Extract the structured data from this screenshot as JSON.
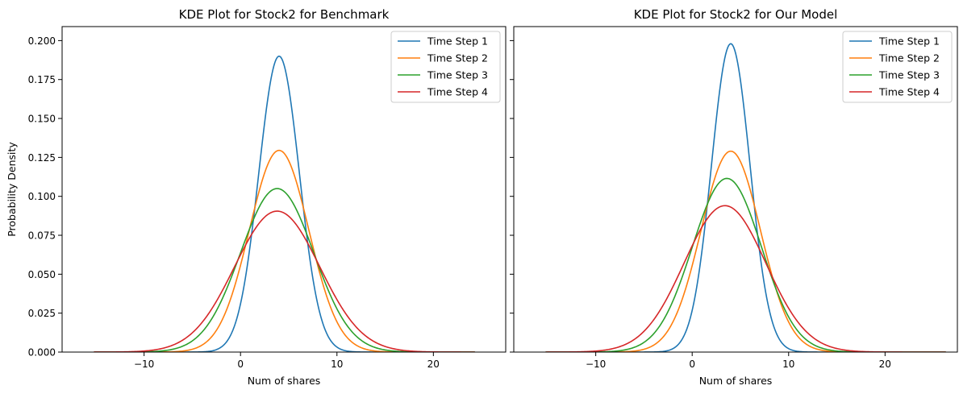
{
  "chart_data": [
    {
      "type": "line",
      "title": "KDE Plot for Stock2 for Benchmark",
      "xlabel": "Num of shares",
      "ylabel": "Probability Density",
      "xlim": [
        -18.5,
        27.5
      ],
      "ylim": [
        0,
        0.209
      ],
      "x_ticks": [
        -10,
        0,
        10,
        20
      ],
      "x_tick_labels": [
        "−10",
        "0",
        "10",
        "20"
      ],
      "y_ticks": [
        0,
        0.025,
        0.05,
        0.075,
        0.1,
        0.125,
        0.15,
        0.175,
        0.2
      ],
      "y_tick_labels": [
        "0.000",
        "0.025",
        "0.050",
        "0.075",
        "0.100",
        "0.125",
        "0.150",
        "0.175",
        "0.200"
      ],
      "show_y_tick_labels": true,
      "legend_position": "top-right",
      "x_range": [
        -15.2,
        24.3
      ],
      "series": [
        {
          "name": "Time Step 1",
          "color": "#1f77b4",
          "peak_x": 4.0,
          "peak_y": 0.19,
          "spread": 2.1
        },
        {
          "name": "Time Step 2",
          "color": "#ff7f0e",
          "peak_x": 4.0,
          "peak_y": 0.1295,
          "spread": 3.08
        },
        {
          "name": "Time Step 3",
          "color": "#2ca02c",
          "peak_x": 3.8,
          "peak_y": 0.105,
          "spread": 3.8
        },
        {
          "name": "Time Step 4",
          "color": "#d62728",
          "peak_x": 3.8,
          "peak_y": 0.0905,
          "spread": 4.41
        }
      ]
    },
    {
      "type": "line",
      "title": "KDE Plot for Stock2 for Our Model",
      "xlabel": "Num of shares",
      "ylabel": "",
      "xlim": [
        -18.5,
        27.5
      ],
      "ylim": [
        0,
        0.209
      ],
      "x_ticks": [
        -10,
        0,
        10,
        20
      ],
      "x_tick_labels": [
        "−10",
        "0",
        "10",
        "20"
      ],
      "y_ticks": [
        0,
        0.025,
        0.05,
        0.075,
        0.1,
        0.125,
        0.15,
        0.175,
        0.2
      ],
      "y_tick_labels": [
        "0.000",
        "0.025",
        "0.050",
        "0.075",
        "0.100",
        "0.125",
        "0.150",
        "0.175",
        "0.200"
      ],
      "show_y_tick_labels": false,
      "legend_position": "top-right",
      "x_range": [
        -15.2,
        26.3
      ],
      "series": [
        {
          "name": "Time Step 1",
          "color": "#1f77b4",
          "peak_x": 4.0,
          "peak_y": 0.198,
          "spread": 2.0
        },
        {
          "name": "Time Step 2",
          "color": "#ff7f0e",
          "peak_x": 4.0,
          "peak_y": 0.129,
          "spread": 3.08
        },
        {
          "name": "Time Step 3",
          "color": "#2ca02c",
          "peak_x": 3.6,
          "peak_y": 0.1115,
          "spread": 3.58
        },
        {
          "name": "Time Step 4",
          "color": "#d62728",
          "peak_x": 3.4,
          "peak_y": 0.094,
          "spread": 4.25
        }
      ]
    }
  ]
}
